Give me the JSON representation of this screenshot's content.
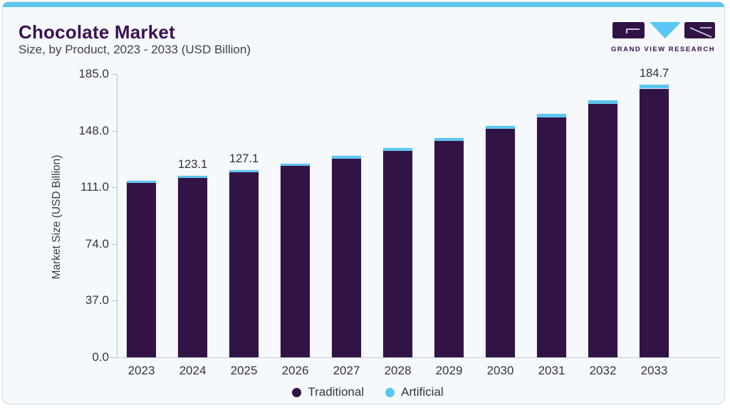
{
  "card": {
    "title": "Chocolate Market",
    "subtitle": "Size, by Product, 2023 - 2033 (USD Billion)"
  },
  "logo": {
    "text": "GRAND VIEW RESEARCH"
  },
  "colors": {
    "traditional": "#321345",
    "artificial": "#58c7f3",
    "accent_strip": "#60c5ee",
    "title_purple": "#3c1053",
    "card_background": "#f5f9fc"
  },
  "chart_data": {
    "type": "bar",
    "stacked": true,
    "title": "Chocolate Market Size, by Product, 2023 - 2033 (USD Billion)",
    "categories": [
      2023,
      2024,
      2025,
      2026,
      2027,
      2028,
      2029,
      2030,
      2031,
      2032,
      2033
    ],
    "series": [
      {
        "name": "Traditional",
        "color": "#321345",
        "values": [
          118.0,
          121.6,
          125.5,
          129.6,
          134.8,
          140.1,
          146.6,
          154.9,
          162.7,
          171.7,
          182.1
        ]
      },
      {
        "name": "Artificial",
        "color": "#58c7f3",
        "values": [
          1.4,
          1.5,
          1.6,
          1.7,
          1.8,
          1.9,
          2.0,
          2.1,
          2.3,
          2.5,
          2.6
        ]
      }
    ],
    "totals": [
      119.4,
      123.1,
      127.1,
      131.3,
      136.6,
      142.0,
      148.6,
      157.0,
      165.0,
      174.2,
      184.7
    ],
    "value_labels": {
      "2024": "123.1",
      "2025": "127.1",
      "2033": "184.7"
    },
    "xlabel": "",
    "ylabel": "Market Size (USD Billion)",
    "ylim": [
      0,
      185
    ],
    "yticks": [
      0,
      37,
      74,
      111,
      148,
      185
    ],
    "ytick_labels": [
      "0.0",
      "37.0",
      "74.0",
      "111.0",
      "148.0",
      "185.0"
    ],
    "grid": false,
    "legend_position": "bottom-center"
  },
  "legend": [
    {
      "label": "Traditional",
      "color": "#321345"
    },
    {
      "label": "Artificial",
      "color": "#58c7f3"
    }
  ]
}
